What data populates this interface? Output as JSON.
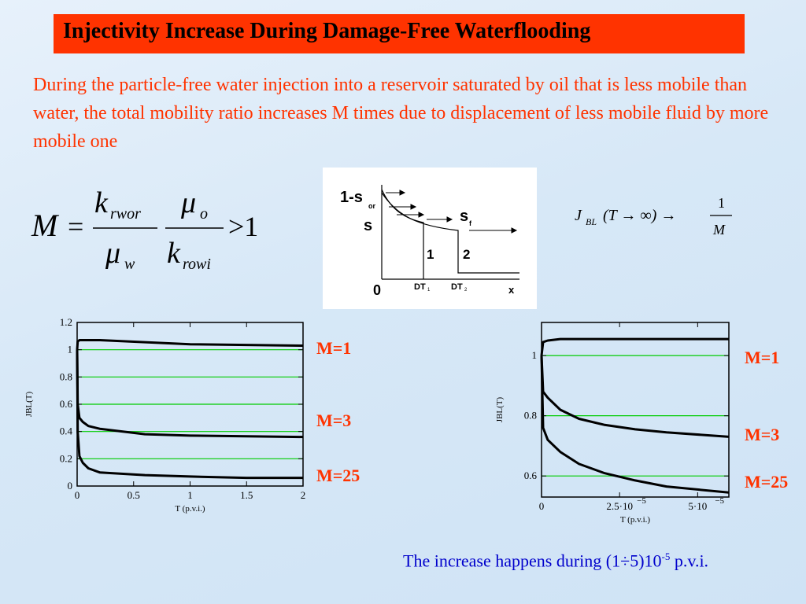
{
  "slide": {
    "title": "Injectivity Increase During Damage-Free Waterflooding",
    "paragraph": "During the particle-free water injection into a reservoir saturated by oil that is less mobile than water, the total mobility ratio increases M times due to displacement of less mobile fluid by more mobile one",
    "formula": {
      "lhs": "M",
      "eq": "=",
      "k1": "k",
      "k1_sub": "rwor",
      "mu1": "μ",
      "mu1_sub": "w",
      "mu2": "μ",
      "mu2_sub": "o",
      "k2": "k",
      "k2_sub": "rowi",
      "rhs": ">1"
    },
    "jbl_formula": {
      "J": "J",
      "J_sub": "BL",
      "arg": "(T → ∞) →",
      "num": "1",
      "den": "M"
    },
    "diagram": {
      "top_label": "1-s",
      "top_sub": "or",
      "s_label": "s",
      "sf_label": "s",
      "sf_sub": "f",
      "front1": "1",
      "front2": "2",
      "origin": "0",
      "dt1": "DT",
      "dt1_sub": "1",
      "dt2": "DT",
      "dt2_sub": "2",
      "x_label": "x"
    },
    "bottom_note": {
      "text": "The increase happens during (1",
      "sep": "÷",
      "text2": "5)10",
      "exp": "-5",
      "text3": " p.v.i."
    }
  },
  "chart_data": [
    {
      "type": "line",
      "ylabel": "JBL(T)",
      "xlabel": "T  (p.v.i.)",
      "xlim": [
        0,
        2
      ],
      "ylim": [
        0,
        1.2
      ],
      "x_ticks": [
        "0",
        "0.5",
        "1",
        "1.5",
        "2"
      ],
      "y_ticks": [
        "0",
        "0.2",
        "0.4",
        "0.6",
        "0.8",
        "1",
        "1.2"
      ],
      "gridlines_y": [
        0.2,
        0.4,
        0.6,
        0.8,
        1.0
      ],
      "grid_color": "#00cc00",
      "series": [
        {
          "name": "M=1",
          "x": [
            0,
            0.005,
            0.02,
            0.2,
            1.0,
            2.0
          ],
          "y": [
            1.0,
            1.06,
            1.07,
            1.07,
            1.04,
            1.03
          ]
        },
        {
          "name": "M=3",
          "x": [
            0,
            0.005,
            0.02,
            0.05,
            0.1,
            0.2,
            0.6,
            1.0,
            2.0
          ],
          "y": [
            1.0,
            0.6,
            0.5,
            0.47,
            0.44,
            0.42,
            0.38,
            0.37,
            0.36
          ]
        },
        {
          "name": "M=25",
          "x": [
            0,
            0.005,
            0.02,
            0.05,
            0.1,
            0.2,
            0.6,
            1.0,
            1.5,
            2.0
          ],
          "y": [
            1.0,
            0.4,
            0.22,
            0.17,
            0.13,
            0.1,
            0.08,
            0.07,
            0.06,
            0.06
          ]
        }
      ]
    },
    {
      "type": "line",
      "ylabel": "JBL(T)",
      "xlabel": "T  (p.v.i.)",
      "xlim": [
        0,
        6e-05
      ],
      "ylim": [
        0.53,
        1.11
      ],
      "x_ticks": [
        "0",
        "2.5·10",
        "5·10"
      ],
      "x_tick_exp": "−5",
      "y_ticks": [
        "0.6",
        "0.8",
        "1"
      ],
      "gridlines_y": [
        0.6,
        0.8,
        1.0
      ],
      "grid_color": "#00cc00",
      "series": [
        {
          "name": "M=1",
          "x": [
            0,
            5e-07,
            2e-06,
            6e-06,
            2e-05,
            6e-05
          ],
          "y": [
            1.0,
            1.045,
            1.05,
            1.055,
            1.055,
            1.055
          ]
        },
        {
          "name": "M=3",
          "x": [
            0,
            5e-07,
            2e-06,
            6e-06,
            1.2e-05,
            2e-05,
            3e-05,
            4e-05,
            6e-05
          ],
          "y": [
            1.0,
            0.88,
            0.86,
            0.82,
            0.79,
            0.77,
            0.755,
            0.745,
            0.73
          ]
        },
        {
          "name": "M=25",
          "x": [
            0,
            5e-07,
            2e-06,
            6e-06,
            1.2e-05,
            2e-05,
            3e-05,
            4e-05,
            6e-05
          ],
          "y": [
            1.0,
            0.76,
            0.72,
            0.68,
            0.64,
            0.61,
            0.585,
            0.565,
            0.545
          ]
        }
      ]
    }
  ],
  "colors": {
    "accent": "#ff3300",
    "note": "#0000cc",
    "grid": "#00cc00",
    "background": "#dbe9f7"
  }
}
